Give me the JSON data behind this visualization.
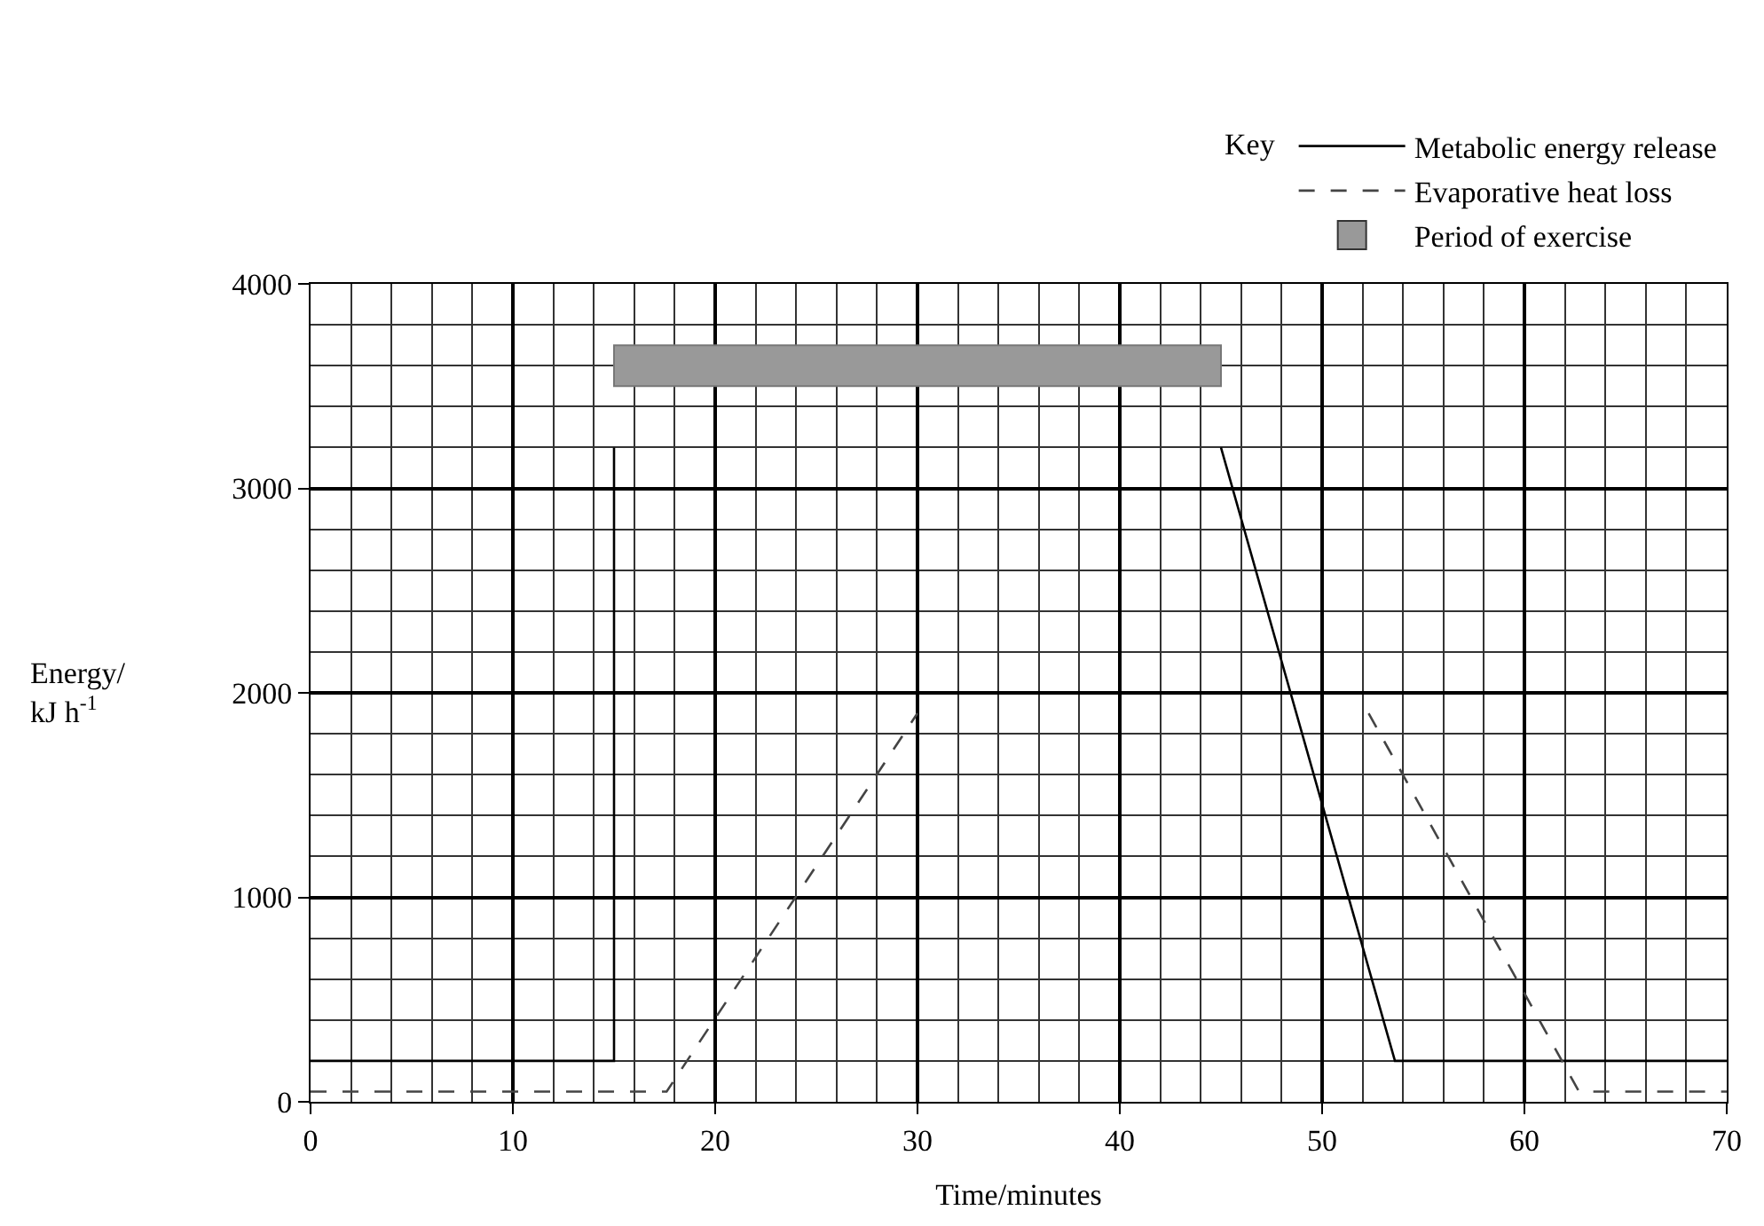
{
  "chart_data": {
    "type": "line",
    "xlabel": "Time/minutes",
    "ylabel": "Energy/\nkJ h$^{-1}$",
    "legend_title": "Key",
    "series": [
      {
        "name": "Metabolic energy release",
        "color": "#000000",
        "line_style": "solid",
        "x": [
          0,
          15,
          15,
          30,
          45,
          53.6,
          70
        ],
        "values": [
          200,
          200,
          3200,
          null,
          3200,
          200,
          200
        ]
      },
      {
        "name": "Evaporative heat loss",
        "color": "#444444",
        "line_style": "dashed",
        "x": [
          0,
          17.6,
          30,
          41,
          52.3,
          62.7,
          70
        ],
        "values": [
          50,
          50,
          1900,
          null,
          1900,
          50,
          50
        ]
      }
    ],
    "bands": [
      {
        "axis": "x",
        "from": 15,
        "to": 45,
        "label": "Period of exercise",
        "color": "#999999"
      }
    ],
    "xlim": [
      0,
      70
    ],
    "xticks": [
      0,
      10,
      20,
      30,
      40,
      50,
      60,
      70
    ],
    "ylim": [
      0,
      4000
    ],
    "yticks": [
      0,
      1000,
      2000,
      3000,
      4000
    ],
    "grid": true,
    "legend": "top right",
    "marker": "none"
  }
}
